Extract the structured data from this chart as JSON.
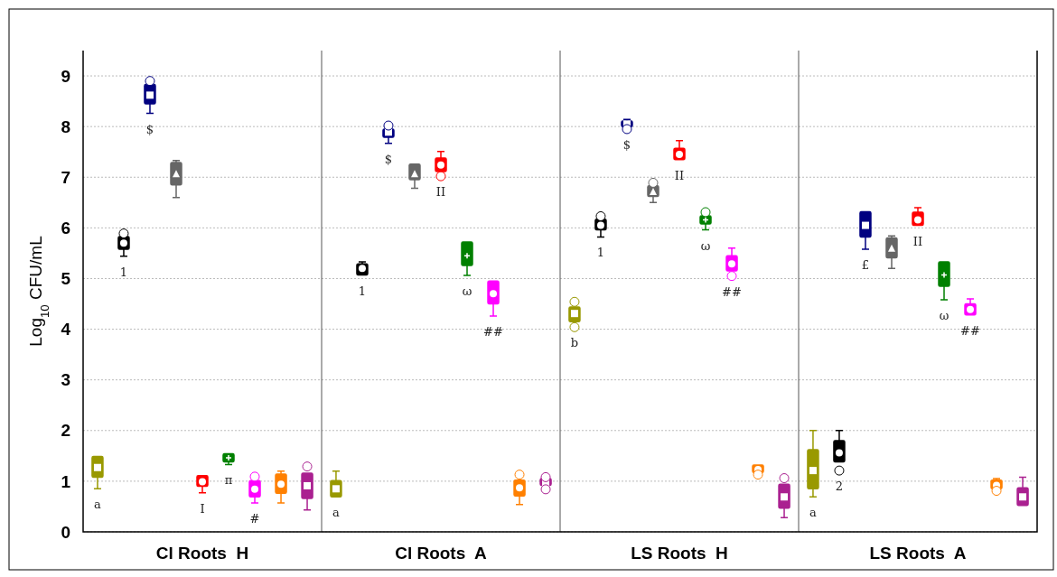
{
  "chart_data": {
    "type": "box",
    "ylabel": "Log$_{10}$ CFU/mL",
    "categories": [
      "Cl Roots  H",
      "Cl Roots  A",
      "LS Roots  H",
      "LS Roots  A"
    ],
    "ylim": [
      0,
      9.5
    ],
    "yticks": [
      0,
      1,
      2,
      3,
      4,
      5,
      6,
      7,
      8,
      9
    ],
    "grid": "y",
    "series": [
      {
        "color": "#999900",
        "marker": "square",
        "value_labels": [
          "a",
          "a",
          "b",
          "a"
        ],
        "boxes": [
          {
            "low": 0.85,
            "q1": 1.08,
            "median": 1.27,
            "q3": 1.49,
            "high": 1.49
          },
          {
            "low": 0.69,
            "q1": 0.69,
            "median": 0.85,
            "q3": 1.01,
            "high": 1.2
          },
          {
            "low": 4.15,
            "q1": 4.15,
            "median": 4.31,
            "q3": 4.44,
            "high": 4.44,
            "outliers": [
              4.54,
              4.04
            ]
          },
          {
            "low": 0.69,
            "q1": 0.85,
            "median": 1.21,
            "q3": 1.62,
            "high": 2.0
          }
        ]
      },
      {
        "color": "#000000",
        "marker": "circle",
        "value_labels": [
          "1",
          "1",
          "1",
          "2"
        ],
        "boxes": [
          {
            "low": 5.44,
            "q1": 5.58,
            "median": 5.7,
            "q3": 5.83,
            "high": 5.83,
            "outliers": [
              5.89
            ]
          },
          {
            "low": 5.07,
            "q1": 5.07,
            "median": 5.2,
            "q3": 5.29,
            "high": 5.33
          },
          {
            "low": 5.82,
            "q1": 5.96,
            "median": 6.05,
            "q3": 6.17,
            "high": 6.17,
            "outliers": [
              6.23
            ]
          },
          {
            "low": 1.38,
            "q1": 1.38,
            "median": 1.56,
            "q3": 1.8,
            "high": 2.0,
            "outliers": [
              1.21
            ]
          }
        ]
      },
      {
        "color": "#000080",
        "marker": "square",
        "value_labels": [
          "$",
          "$",
          "$",
          "£"
        ],
        "boxes": [
          {
            "low": 8.26,
            "q1": 8.45,
            "median": 8.62,
            "q3": 8.83,
            "high": 8.83,
            "outliers": [
              8.9
            ]
          },
          {
            "low": 7.67,
            "q1": 7.79,
            "median": 7.89,
            "q3": 7.95,
            "high": 7.95,
            "outliers": [
              8.02
            ]
          },
          {
            "low": 8.0,
            "q1": 8.0,
            "median": 8.05,
            "q3": 8.11,
            "high": 8.14,
            "outliers": [
              7.95
            ]
          },
          {
            "low": 5.58,
            "q1": 5.82,
            "median": 6.05,
            "q3": 6.32,
            "high": 6.32
          }
        ]
      },
      {
        "color": "#666666",
        "marker": "triangle",
        "boxes": [
          {
            "low": 6.6,
            "q1": 6.85,
            "median": 7.07,
            "q3": 7.29,
            "high": 7.33
          },
          {
            "low": 6.78,
            "q1": 6.95,
            "median": 7.07,
            "q3": 7.26,
            "high": 7.26
          },
          {
            "low": 6.5,
            "q1": 6.62,
            "median": 6.72,
            "q3": 6.83,
            "high": 6.83,
            "outliers": [
              6.89
            ]
          },
          {
            "low": 5.2,
            "q1": 5.41,
            "median": 5.6,
            "q3": 5.8,
            "high": 5.84
          }
        ]
      },
      {
        "color": "#ff0000",
        "marker": "circle",
        "value_labels": [
          "I",
          "II",
          "II",
          "II"
        ],
        "boxes": [
          {
            "low": 0.77,
            "q1": 0.9,
            "median": 0.99,
            "q3": 1.11,
            "high": 1.11
          },
          {
            "low": 7.11,
            "q1": 7.11,
            "median": 7.24,
            "q3": 7.38,
            "high": 7.51,
            "outliers": [
              7.02
            ]
          },
          {
            "low": 7.35,
            "q1": 7.35,
            "median": 7.45,
            "q3": 7.57,
            "high": 7.72
          },
          {
            "low": 6.05,
            "q1": 6.05,
            "median": 6.16,
            "q3": 6.31,
            "high": 6.4
          }
        ]
      },
      {
        "color": "#008000",
        "marker": "cross",
        "value_labels": [
          "π",
          "ω",
          "ω",
          "ω"
        ],
        "boxes": [
          {
            "low": 1.33,
            "q1": 1.38,
            "median": 1.46,
            "q3": 1.54,
            "high": 1.54
          },
          {
            "low": 5.06,
            "q1": 5.26,
            "median": 5.45,
            "q3": 5.72,
            "high": 5.72
          },
          {
            "low": 5.96,
            "q1": 6.08,
            "median": 6.16,
            "q3": 6.24,
            "high": 6.24,
            "outliers": [
              6.31
            ]
          },
          {
            "low": 4.58,
            "q1": 4.85,
            "median": 5.07,
            "q3": 5.33,
            "high": 5.33
          }
        ]
      },
      {
        "color": "#ff00ff",
        "marker": "circle",
        "value_labels": [
          "#",
          "##",
          "##",
          "##"
        ],
        "boxes": [
          {
            "low": 0.57,
            "q1": 0.69,
            "median": 0.84,
            "q3": 1.01,
            "high": 1.01,
            "outliers": [
              1.09
            ]
          },
          {
            "low": 4.26,
            "q1": 4.5,
            "median": 4.7,
            "q3": 4.95,
            "high": 4.95
          },
          {
            "low": 5.15,
            "q1": 5.15,
            "median": 5.29,
            "q3": 5.45,
            "high": 5.6,
            "outliers": [
              5.05
            ]
          },
          {
            "low": 4.28,
            "q1": 4.28,
            "median": 4.39,
            "q3": 4.5,
            "high": 4.6
          }
        ]
      },
      {
        "color": "#ff8000",
        "marker": "circle",
        "boxes": [
          {
            "low": 0.57,
            "q1": 0.76,
            "median": 0.94,
            "q3": 1.14,
            "high": 1.2
          },
          {
            "low": 0.54,
            "q1": 0.71,
            "median": 0.87,
            "q3": 1.02,
            "high": 1.02,
            "outliers": [
              1.13
            ]
          },
          {
            "low": 1.17,
            "q1": 1.17,
            "median": 1.23,
            "q3": 1.32,
            "high": 1.32,
            "outliers": [
              1.13
            ]
          },
          {
            "low": 0.85,
            "q1": 0.85,
            "median": 0.92,
            "q3": 1.02,
            "high": 1.05,
            "outliers": [
              0.81
            ]
          }
        ]
      },
      {
        "color": "#aa2090",
        "marker": "square",
        "boxes": [
          {
            "low": 0.43,
            "q1": 0.66,
            "median": 0.91,
            "q3": 1.16,
            "high": 1.16,
            "outliers": [
              1.29
            ]
          },
          {
            "low": 0.92,
            "q1": 0.92,
            "median": 0.98,
            "q3": 1.05,
            "high": 1.05,
            "outliers": [
              1.08,
              0.84
            ]
          },
          {
            "low": 0.28,
            "q1": 0.47,
            "median": 0.69,
            "q3": 0.94,
            "high": 0.94,
            "outliers": [
              1.06
            ]
          },
          {
            "low": 0.52,
            "q1": 0.52,
            "median": 0.69,
            "q3": 0.87,
            "high": 1.08
          }
        ]
      }
    ]
  }
}
